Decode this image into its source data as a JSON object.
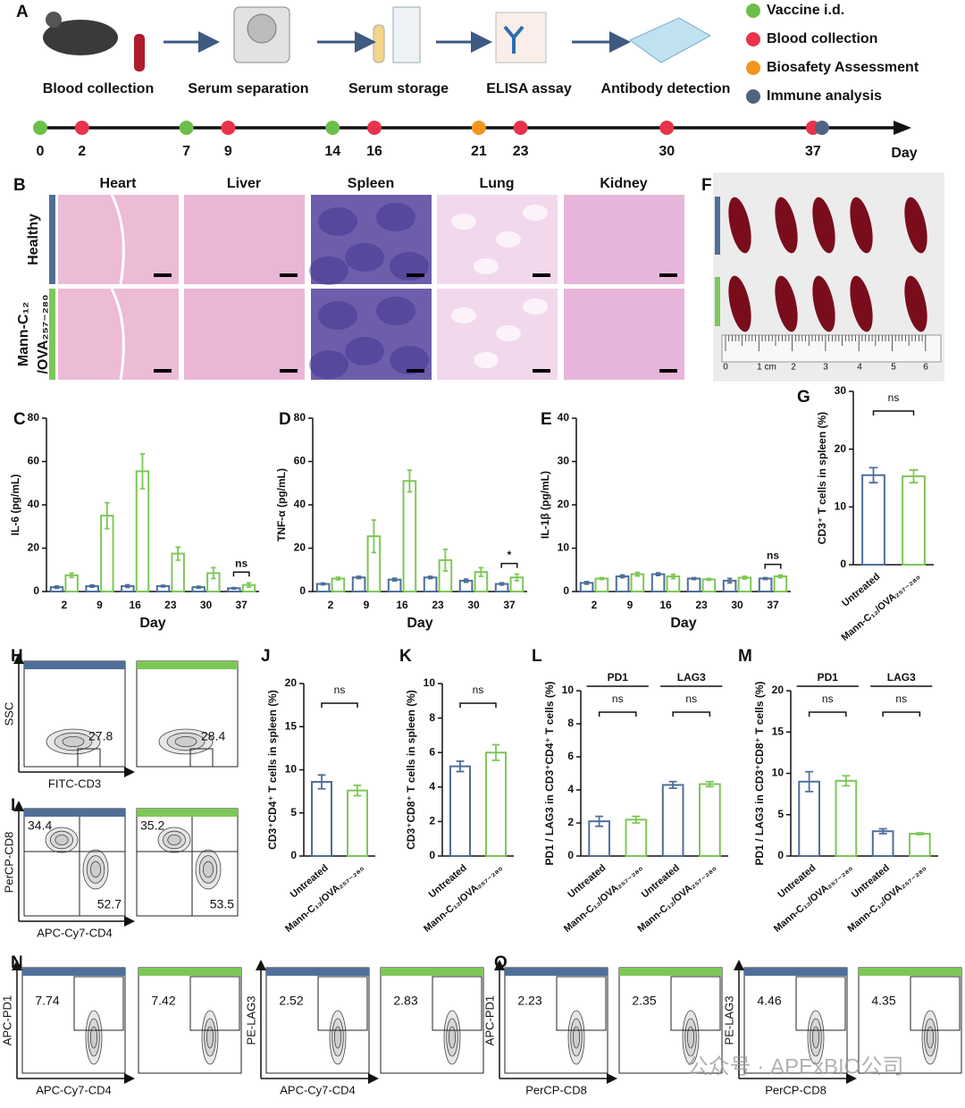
{
  "panel_labels": [
    "A",
    "B",
    "C",
    "D",
    "E",
    "F",
    "G",
    "H",
    "I",
    "J",
    "K",
    "L",
    "M",
    "N",
    "O"
  ],
  "workflow": {
    "steps": [
      "Blood collection",
      "Serum separation",
      "Serum storage",
      "ELISA assay",
      "Antibody detection"
    ],
    "legend": [
      {
        "label": "Vaccine i.d.",
        "color": "#6cbf4a",
        "days": [
          0,
          7,
          14
        ]
      },
      {
        "label": "Blood collection",
        "color": "#e8334a",
        "days": [
          2,
          9,
          16,
          23,
          30,
          37
        ]
      },
      {
        "label": "Biosafety Assessment",
        "color": "#f3961f",
        "days": [
          21
        ]
      },
      {
        "label": "Immune analysis",
        "color": "#4f6382",
        "days": [
          37
        ]
      }
    ]
  },
  "timeline": {
    "xlim": [
      0,
      40
    ],
    "ticks": [
      0,
      2,
      7,
      9,
      14,
      16,
      21,
      23,
      30,
      37
    ],
    "axis_label": "Day"
  },
  "histology": {
    "columns": [
      "Heart",
      "Liver",
      "Spleen",
      "Lung",
      "Kidney"
    ],
    "rows": [
      {
        "label_lines": [
          "Healthy"
        ],
        "color": "#4f6f99"
      },
      {
        "label_lines": [
          "Mann-C₁₂",
          "/OVA₂₅₇₋₂₈₀"
        ],
        "color": "#7dc757"
      }
    ]
  },
  "spleen_photo": {
    "ruler_labels": [
      "0",
      "1 cm",
      "2",
      "3",
      "4",
      "5",
      "6"
    ]
  },
  "chart_data": [
    {
      "type": "bar",
      "ylabel": "IL-6 (pg/mL)",
      "xlabel": "Day",
      "categories": [
        2,
        9,
        16,
        23,
        30,
        37
      ],
      "series": [
        {
          "color": "#4f6f99",
          "values": [
            2,
            2.5,
            2.5,
            2.5,
            2,
            1.5
          ],
          "errors": [
            0.5,
            0.5,
            0.6,
            0.4,
            0.4,
            0.3
          ]
        },
        {
          "color": "#7dc757",
          "values": [
            7.5,
            35,
            55.5,
            17.5,
            8.5,
            3
          ],
          "errors": [
            1,
            6,
            8,
            3,
            2.5,
            1
          ]
        }
      ],
      "ylim": [
        0,
        80
      ],
      "yticks": [
        0,
        20,
        40,
        60,
        80
      ],
      "annotations": [
        "ns"
      ]
    },
    {
      "type": "bar",
      "ylabel": "TNF-α (pg/mL)",
      "xlabel": "Day",
      "categories": [
        2,
        9,
        16,
        23,
        30,
        37
      ],
      "series": [
        {
          "color": "#4f6f99",
          "values": [
            3.5,
            6.5,
            5.5,
            6.5,
            5,
            3.5
          ],
          "errors": [
            0.4,
            0.5,
            0.6,
            0.5,
            0.7,
            0.5
          ]
        },
        {
          "color": "#7dc757",
          "values": [
            6,
            25.5,
            51,
            14.5,
            9,
            6.5
          ],
          "errors": [
            0.6,
            7.5,
            5,
            5,
            2,
            1.5
          ]
        }
      ],
      "ylim": [
        0,
        80
      ],
      "yticks": [
        0,
        20,
        40,
        60,
        80
      ],
      "annotations": [
        "*"
      ]
    },
    {
      "type": "bar",
      "ylabel": "IL-1β (pg/mL)",
      "xlabel": "Day",
      "categories": [
        2,
        9,
        16,
        23,
        30,
        37
      ],
      "series": [
        {
          "color": "#4f6f99",
          "values": [
            2,
            3.5,
            4,
            3,
            2.5,
            3
          ],
          "errors": [
            0.3,
            0.3,
            0.3,
            0.2,
            0.5,
            0.2
          ]
        },
        {
          "color": "#7dc757",
          "values": [
            3,
            4,
            3.5,
            2.8,
            3.2,
            3.5
          ],
          "errors": [
            0.2,
            0.4,
            0.5,
            0.2,
            0.3,
            0.3
          ]
        }
      ],
      "ylim": [
        0,
        40
      ],
      "yticks": [
        0,
        10,
        20,
        30,
        40
      ],
      "annotations": [
        "ns"
      ]
    },
    {
      "type": "bar",
      "ylabel": "CD3⁺ T cells in spleen (%)",
      "categories": [
        "Untreated",
        "Mann-C₁₂/OVA₂₅₇₋₂₈₀"
      ],
      "series": [
        {
          "colors": [
            "#4f6f99",
            "#7dc757"
          ],
          "values": [
            15.5,
            15.3
          ],
          "errors": [
            1.3,
            1.1
          ]
        }
      ],
      "ylim": [
        0,
        30
      ],
      "yticks": [
        0,
        10,
        20,
        30
      ],
      "annotations": [
        "ns"
      ]
    },
    {
      "type": "bar",
      "ylabel": "CD3⁺CD4⁺ T cells in spleen (%)",
      "categories": [
        "Untreated",
        "Mann-C₁₂/OVA₂₅₇₋₂₈₀"
      ],
      "series": [
        {
          "colors": [
            "#4f6f99",
            "#7dc757"
          ],
          "values": [
            8.6,
            7.6
          ],
          "errors": [
            0.8,
            0.6
          ]
        }
      ],
      "ylim": [
        0,
        20
      ],
      "yticks": [
        0,
        5,
        10,
        15,
        20
      ],
      "annotations": [
        "ns"
      ]
    },
    {
      "type": "bar",
      "ylabel": "CD3⁺CD8⁺ T cells in spleen (%)",
      "categories": [
        "Untreated",
        "Mann-C₁₂/OVA₂₅₇₋₂₈₀"
      ],
      "series": [
        {
          "colors": [
            "#4f6f99",
            "#7dc757"
          ],
          "values": [
            5.2,
            6
          ],
          "errors": [
            0.3,
            0.45
          ]
        }
      ],
      "ylim": [
        0,
        10
      ],
      "yticks": [
        0,
        2,
        4,
        6,
        8,
        10
      ],
      "annotations": [
        "ns"
      ]
    },
    {
      "type": "bar",
      "ylabel": "PD1 / LAG3 in CD3⁺CD4⁺ T cells (%)",
      "categories": [
        "Untreated",
        "Mann-C₁₂/OVA₂₅₇₋₂₈₀",
        "Untreated",
        "Mann-C₁₂/OVA₂₅₇₋₂₈₀"
      ],
      "group_labels": [
        "PD1",
        "LAG3"
      ],
      "series": [
        {
          "colors": [
            "#4f6f99",
            "#7dc757",
            "#4f6f99",
            "#7dc757"
          ],
          "values": [
            2.1,
            2.2,
            4.3,
            4.35
          ],
          "errors": [
            0.3,
            0.2,
            0.2,
            0.15
          ]
        }
      ],
      "ylim": [
        0,
        10
      ],
      "yticks": [
        0,
        2,
        4,
        6,
        8,
        10
      ],
      "annotations": [
        "ns",
        "ns"
      ]
    },
    {
      "type": "bar",
      "ylabel": "PD1 / LAG3 in CD3⁺CD8⁺ T cells (%)",
      "categories": [
        "Untreated",
        "Mann-C₁₂/OVA₂₅₇₋₂₈₀",
        "Untreated",
        "Mann-C₁₂/OVA₂₅₇₋₂₈₀"
      ],
      "group_labels": [
        "PD1",
        "LAG3"
      ],
      "series": [
        {
          "colors": [
            "#4f6f99",
            "#7dc757",
            "#4f6f99",
            "#7dc757"
          ],
          "values": [
            9,
            9.1,
            3,
            2.7
          ],
          "errors": [
            1.2,
            0.6,
            0.3,
            0.1
          ]
        }
      ],
      "ylim": [
        0,
        20
      ],
      "yticks": [
        0,
        5,
        10,
        15,
        20
      ],
      "annotations": [
        "ns",
        "ns"
      ]
    }
  ],
  "flow": [
    {
      "y_label": "SSC",
      "x_label": "FITC-CD3",
      "plots": [
        {
          "color": "#4f6f99",
          "values": [
            27.8
          ]
        },
        {
          "color": "#7dc757",
          "values": [
            28.4
          ]
        }
      ]
    },
    {
      "y_label": "PerCP-CD8",
      "x_label": "APC-Cy7-CD4",
      "plots": [
        {
          "color": "#4f6f99",
          "values": [
            34.4,
            52.7
          ]
        },
        {
          "color": "#7dc757",
          "values": [
            35.2,
            53.5
          ]
        }
      ]
    },
    {
      "y_label": "APC-PD1",
      "x_label": "APC-Cy7-CD4",
      "plots": [
        {
          "color": "#4f6f99",
          "values": [
            7.74
          ]
        },
        {
          "color": "#7dc757",
          "values": [
            7.42
          ]
        }
      ]
    },
    {
      "y_label": "PE-LAG3",
      "x_label": "APC-Cy7-CD4",
      "plots": [
        {
          "color": "#4f6f99",
          "values": [
            2.52
          ]
        },
        {
          "color": "#7dc757",
          "values": [
            2.83
          ]
        }
      ]
    },
    {
      "y_label": "APC-PD1",
      "x_label": "PerCP-CD8",
      "plots": [
        {
          "color": "#4f6f99",
          "values": [
            2.23
          ]
        },
        {
          "color": "#7dc757",
          "values": [
            2.35
          ]
        }
      ]
    },
    {
      "y_label": "PE-LAG3",
      "x_label": "PerCP-CD8",
      "plots": [
        {
          "color": "#4f6f99",
          "values": [
            4.46
          ]
        },
        {
          "color": "#7dc757",
          "values": [
            4.35
          ]
        }
      ]
    }
  ],
  "watermark": "公众号 · APExBIO公司"
}
